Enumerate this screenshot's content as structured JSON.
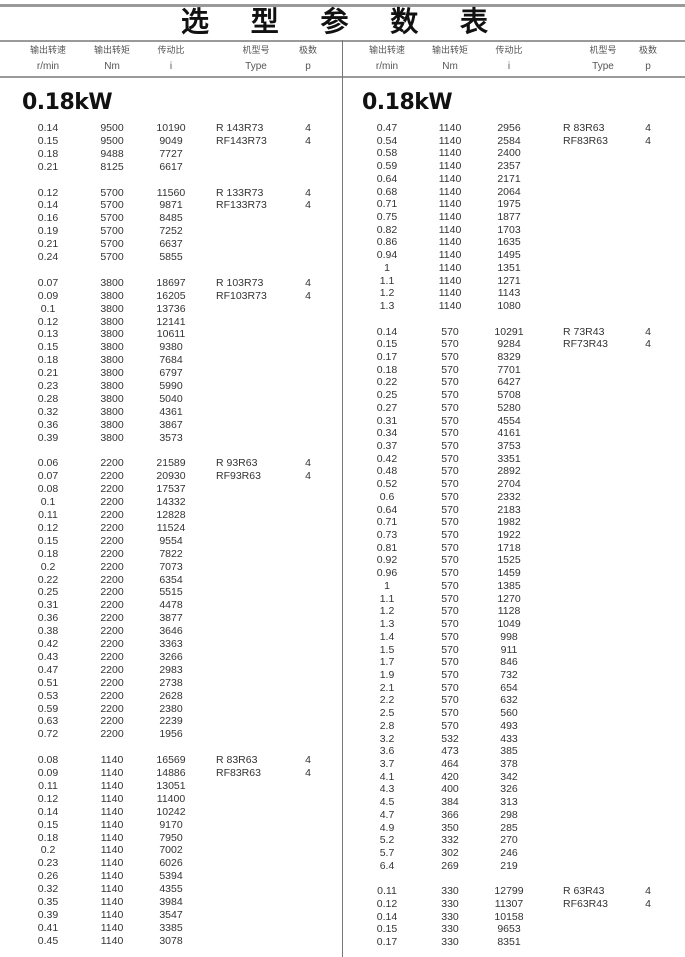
{
  "title": "选 型 参 数 表",
  "headers": [
    {
      "cn": "输出转速",
      "en": "r/min"
    },
    {
      "cn": "输出转矩",
      "en": "Nm"
    },
    {
      "cn": "传动比",
      "en": "i"
    },
    {
      "cn": "机型号",
      "en": "Type"
    },
    {
      "cn": "极数",
      "en": "p"
    }
  ],
  "left": {
    "power": "0.18kW",
    "groups": [
      {
        "types": [
          "R 143R73",
          "RF143R73"
        ],
        "poles": [
          "4",
          "4"
        ],
        "rows": [
          [
            "0.14",
            "9500",
            "10190"
          ],
          [
            "0.15",
            "9500",
            "9049"
          ],
          [
            "0.18",
            "9488",
            "7727"
          ],
          [
            "0.21",
            "8125",
            "6617"
          ]
        ]
      },
      {
        "types": [
          "R 133R73",
          "RF133R73"
        ],
        "poles": [
          "4",
          "4"
        ],
        "rows": [
          [
            "0.12",
            "5700",
            "11560"
          ],
          [
            "0.14",
            "5700",
            "9871"
          ],
          [
            "0.16",
            "5700",
            "8485"
          ],
          [
            "0.19",
            "5700",
            "7252"
          ],
          [
            "0.21",
            "5700",
            "6637"
          ],
          [
            "0.24",
            "5700",
            "5855"
          ]
        ]
      },
      {
        "types": [
          "R 103R73",
          "RF103R73"
        ],
        "poles": [
          "4",
          "4"
        ],
        "rows": [
          [
            "0.07",
            "3800",
            "18697"
          ],
          [
            "0.09",
            "3800",
            "16205"
          ],
          [
            "0.1",
            "3800",
            "13736"
          ],
          [
            "0.12",
            "3800",
            "12141"
          ],
          [
            "0.13",
            "3800",
            "10611"
          ],
          [
            "0.15",
            "3800",
            "9380"
          ],
          [
            "0.18",
            "3800",
            "7684"
          ],
          [
            "0.21",
            "3800",
            "6797"
          ],
          [
            "0.23",
            "3800",
            "5990"
          ],
          [
            "0.28",
            "3800",
            "5040"
          ],
          [
            "0.32",
            "3800",
            "4361"
          ],
          [
            "0.36",
            "3800",
            "3867"
          ],
          [
            "0.39",
            "3800",
            "3573"
          ]
        ]
      },
      {
        "types": [
          "R 93R63",
          "RF93R63"
        ],
        "poles": [
          "4",
          "4"
        ],
        "rows": [
          [
            "0.06",
            "2200",
            "21589"
          ],
          [
            "0.07",
            "2200",
            "20930"
          ],
          [
            "0.08",
            "2200",
            "17537"
          ],
          [
            "0.1",
            "2200",
            "14332"
          ],
          [
            "0.11",
            "2200",
            "12828"
          ],
          [
            "0.12",
            "2200",
            "11524"
          ],
          [
            "0.15",
            "2200",
            "9554"
          ],
          [
            "0.18",
            "2200",
            "7822"
          ],
          [
            "0.2",
            "2200",
            "7073"
          ],
          [
            "0.22",
            "2200",
            "6354"
          ],
          [
            "0.25",
            "2200",
            "5515"
          ],
          [
            "0.31",
            "2200",
            "4478"
          ],
          [
            "0.36",
            "2200",
            "3877"
          ],
          [
            "0.38",
            "2200",
            "3646"
          ],
          [
            "0.42",
            "2200",
            "3363"
          ],
          [
            "0.43",
            "2200",
            "3266"
          ],
          [
            "0.47",
            "2200",
            "2983"
          ],
          [
            "0.51",
            "2200",
            "2738"
          ],
          [
            "0.53",
            "2200",
            "2628"
          ],
          [
            "0.59",
            "2200",
            "2380"
          ],
          [
            "0.63",
            "2200",
            "2239"
          ],
          [
            "0.72",
            "2200",
            "1956"
          ]
        ]
      },
      {
        "types": [
          "R 83R63",
          "RF83R63"
        ],
        "poles": [
          "4",
          "4"
        ],
        "rows": [
          [
            "0.08",
            "1140",
            "16569"
          ],
          [
            "0.09",
            "1140",
            "14886"
          ],
          [
            "0.11",
            "1140",
            "13051"
          ],
          [
            "0.12",
            "1140",
            "11400"
          ],
          [
            "0.14",
            "1140",
            "10242"
          ],
          [
            "0.15",
            "1140",
            "9170"
          ],
          [
            "0.18",
            "1140",
            "7950"
          ],
          [
            "0.2",
            "1140",
            "7002"
          ],
          [
            "0.23",
            "1140",
            "6026"
          ],
          [
            "0.26",
            "1140",
            "5394"
          ],
          [
            "0.32",
            "1140",
            "4355"
          ],
          [
            "0.35",
            "1140",
            "3984"
          ],
          [
            "0.39",
            "1140",
            "3547"
          ],
          [
            "0.41",
            "1140",
            "3385"
          ],
          [
            "0.45",
            "1140",
            "3078"
          ]
        ]
      }
    ]
  },
  "right": {
    "power": "0.18kW",
    "groups": [
      {
        "types": [
          "R 83R63",
          "RF83R63"
        ],
        "poles": [
          "4",
          "4"
        ],
        "rows": [
          [
            "0.47",
            "1140",
            "2956"
          ],
          [
            "0.54",
            "1140",
            "2584"
          ],
          [
            "0.58",
            "1140",
            "2400"
          ],
          [
            "0.59",
            "1140",
            "2357"
          ],
          [
            "0.64",
            "1140",
            "2171"
          ],
          [
            "0.68",
            "1140",
            "2064"
          ],
          [
            "0.71",
            "1140",
            "1975"
          ],
          [
            "0.75",
            "1140",
            "1877"
          ],
          [
            "0.82",
            "1140",
            "1703"
          ],
          [
            "0.86",
            "1140",
            "1635"
          ],
          [
            "0.94",
            "1140",
            "1495"
          ],
          [
            "1",
            "1140",
            "1351"
          ],
          [
            "1.1",
            "1140",
            "1271"
          ],
          [
            "1.2",
            "1140",
            "1143"
          ],
          [
            "1.3",
            "1140",
            "1080"
          ]
        ]
      },
      {
        "types": [
          "R 73R43",
          "RF73R43"
        ],
        "poles": [
          "4",
          "4"
        ],
        "rows": [
          [
            "0.14",
            "570",
            "10291"
          ],
          [
            "0.15",
            "570",
            "9284"
          ],
          [
            "0.17",
            "570",
            "8329"
          ],
          [
            "0.18",
            "570",
            "7701"
          ],
          [
            "0.22",
            "570",
            "6427"
          ],
          [
            "0.25",
            "570",
            "5708"
          ],
          [
            "0.27",
            "570",
            "5280"
          ],
          [
            "0.31",
            "570",
            "4554"
          ],
          [
            "0.34",
            "570",
            "4161"
          ],
          [
            "0.37",
            "570",
            "3753"
          ],
          [
            "0.42",
            "570",
            "3351"
          ],
          [
            "0.48",
            "570",
            "2892"
          ],
          [
            "0.52",
            "570",
            "2704"
          ],
          [
            "0.6",
            "570",
            "2332"
          ],
          [
            "0.64",
            "570",
            "2183"
          ],
          [
            "0.71",
            "570",
            "1982"
          ],
          [
            "0.73",
            "570",
            "1922"
          ],
          [
            "0.81",
            "570",
            "1718"
          ],
          [
            "0.92",
            "570",
            "1525"
          ],
          [
            "0.96",
            "570",
            "1459"
          ],
          [
            "1",
            "570",
            "1385"
          ],
          [
            "1.1",
            "570",
            "1270"
          ],
          [
            "1.2",
            "570",
            "1128"
          ],
          [
            "1.3",
            "570",
            "1049"
          ],
          [
            "1.4",
            "570",
            "998"
          ],
          [
            "1.5",
            "570",
            "911"
          ],
          [
            "1.7",
            "570",
            "846"
          ],
          [
            "1.9",
            "570",
            "732"
          ],
          [
            "2.1",
            "570",
            "654"
          ],
          [
            "2.2",
            "570",
            "632"
          ],
          [
            "2.5",
            "570",
            "560"
          ],
          [
            "2.8",
            "570",
            "493"
          ],
          [
            "3.2",
            "532",
            "433"
          ],
          [
            "3.6",
            "473",
            "385"
          ],
          [
            "3.7",
            "464",
            "378"
          ],
          [
            "4.1",
            "420",
            "342"
          ],
          [
            "4.3",
            "400",
            "326"
          ],
          [
            "4.5",
            "384",
            "313"
          ],
          [
            "4.7",
            "366",
            "298"
          ],
          [
            "4.9",
            "350",
            "285"
          ],
          [
            "5.2",
            "332",
            "270"
          ],
          [
            "5.7",
            "302",
            "246"
          ],
          [
            "6.4",
            "269",
            "219"
          ]
        ]
      },
      {
        "types": [
          "R 63R43",
          "RF63R43"
        ],
        "poles": [
          "4",
          "4"
        ],
        "rows": [
          [
            "0.11",
            "330",
            "12799"
          ],
          [
            "0.12",
            "330",
            "11307"
          ],
          [
            "0.14",
            "330",
            "10158"
          ],
          [
            "0.15",
            "330",
            "9653"
          ],
          [
            "0.17",
            "330",
            "8351"
          ]
        ]
      }
    ]
  }
}
